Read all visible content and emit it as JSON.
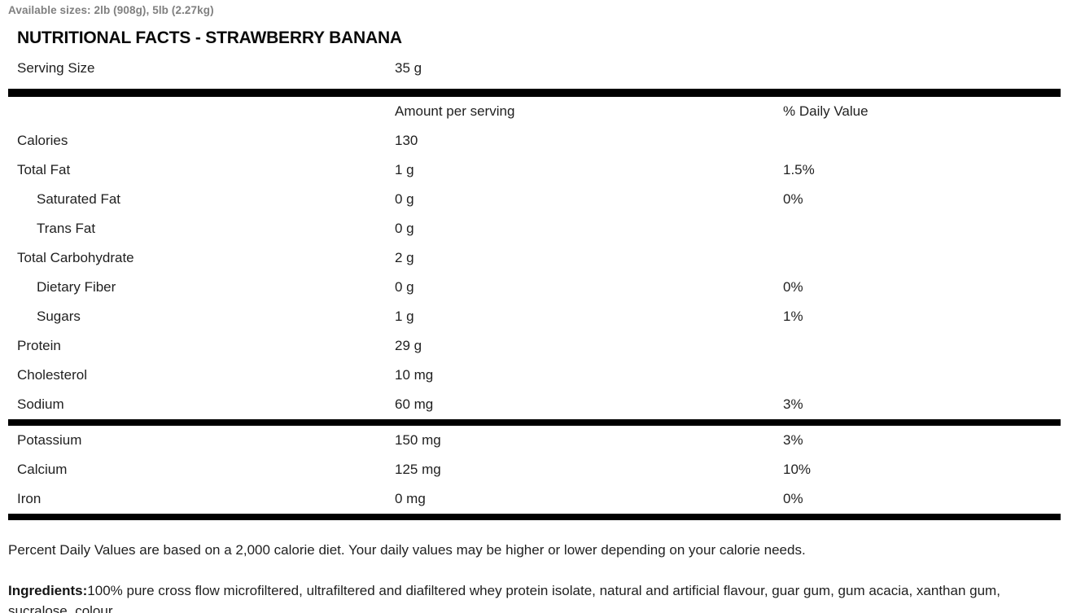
{
  "page": {
    "available_sizes": "Available sizes: 2lb (908g), 5lb (2.27kg)",
    "title": "NUTRITIONAL FACTS - STRAWBERRY BANANA"
  },
  "table": {
    "serving": {
      "label": "Serving Size",
      "value": "35 g"
    },
    "columns": {
      "amount": "Amount per serving",
      "daily_value": "% Daily Value"
    },
    "rows": [
      {
        "label": "Calories",
        "amount": "130",
        "dv": ""
      },
      {
        "label": "Total Fat",
        "amount": "1 g",
        "dv": "1.5%"
      },
      {
        "label": "Saturated Fat",
        "amount": "0 g",
        "dv": "0%"
      },
      {
        "label": "Trans Fat",
        "amount": "0 g",
        "dv": ""
      },
      {
        "label": "Total Carbohydrate",
        "amount": "2 g",
        "dv": ""
      },
      {
        "label": "Dietary Fiber",
        "amount": "0 g",
        "dv": "0%"
      },
      {
        "label": "Sugars",
        "amount": "1 g",
        "dv": "1%"
      },
      {
        "label": "Protein",
        "amount": "29 g",
        "dv": ""
      },
      {
        "label": "Cholesterol",
        "amount": "10 mg",
        "dv": ""
      },
      {
        "label": "Sodium",
        "amount": "60 mg",
        "dv": "3%"
      }
    ],
    "minerals": [
      {
        "label": "Potassium",
        "amount": "150 mg",
        "dv": "3%"
      },
      {
        "label": "Calcium",
        "amount": "125 mg",
        "dv": "10%"
      },
      {
        "label": "Iron",
        "amount": "0 mg",
        "dv": "0%"
      }
    ]
  },
  "footer": {
    "daily_value_note": "Percent Daily Values are based on a 2,000 calorie diet. Your daily values may be higher or lower depending on your calorie needs.",
    "ingredients_label": "Ingredients:",
    "ingredients": "100% pure cross flow microfiltered, ultrafiltered and diafiltered whey protein isolate, natural and artificial flavour, guar gum, gum acacia, xanthan gum, sucralose, colour."
  },
  "colors": {
    "text": "#1f1f1f",
    "muted": "#808080",
    "divider": "#000000"
  }
}
